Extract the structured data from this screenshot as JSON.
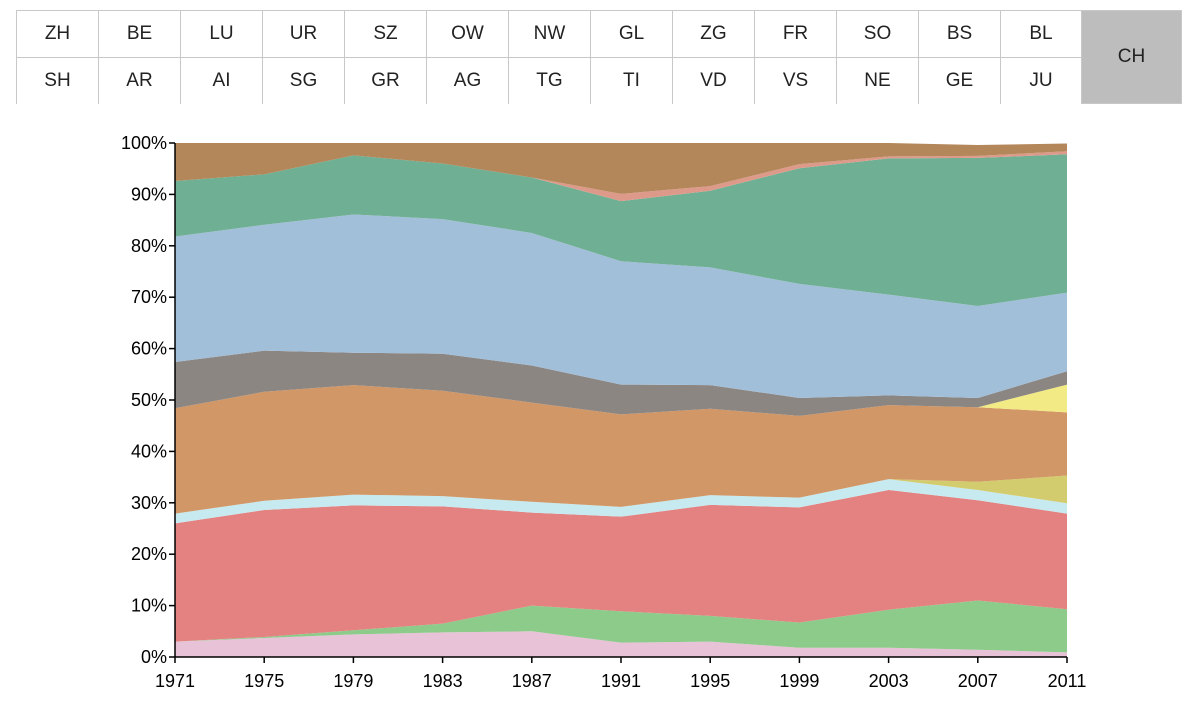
{
  "cantons": {
    "row1": [
      "ZH",
      "BE",
      "LU",
      "UR",
      "SZ",
      "OW",
      "NW",
      "GL",
      "ZG",
      "FR",
      "SO",
      "BS",
      "BL"
    ],
    "row2": [
      "SH",
      "AR",
      "AI",
      "SG",
      "GR",
      "AG",
      "TG",
      "TI",
      "VD",
      "VS",
      "NE",
      "GE",
      "JU"
    ],
    "selected": "CH"
  },
  "chart_data": {
    "type": "area",
    "stacked": true,
    "normalized": true,
    "x": [
      1971,
      1975,
      1979,
      1983,
      1987,
      1991,
      1995,
      1999,
      2003,
      2007,
      2011
    ],
    "xlabel": "",
    "ylabel": "",
    "ylim": [
      0,
      100
    ],
    "yticks": [
      "0%",
      "10%",
      "20%",
      "30%",
      "40%",
      "50%",
      "60%",
      "70%",
      "80%",
      "90%",
      "100%"
    ],
    "xticks": [
      "1971",
      "1975",
      "1979",
      "1983",
      "1987",
      "1991",
      "1995",
      "1999",
      "2003",
      "2007",
      "2011"
    ],
    "grid": false,
    "series": [
      {
        "color": "#e8c2d6",
        "values": [
          3.0,
          3.7,
          4.4,
          4.8,
          5.0,
          2.8,
          3.0,
          1.8,
          1.8,
          1.4,
          0.9
        ]
      },
      {
        "color": "#8ccb8a",
        "values": [
          0.0,
          0.2,
          0.8,
          1.7,
          5.0,
          6.1,
          5.0,
          4.9,
          7.4,
          9.6,
          8.4
        ]
      },
      {
        "color": "#e38281",
        "values": [
          23.0,
          24.7,
          24.3,
          22.8,
          18.1,
          18.4,
          21.6,
          22.4,
          23.3,
          19.5,
          18.6
        ]
      },
      {
        "color": "#c6eaef",
        "values": [
          1.9,
          1.8,
          2.1,
          2.0,
          2.1,
          1.9,
          1.9,
          1.9,
          2.1,
          2.0,
          2.0
        ]
      },
      {
        "color": "#d3cc6e",
        "values": [
          0.0,
          0.0,
          0.0,
          0.0,
          0.0,
          0.0,
          0.0,
          0.0,
          0.0,
          1.6,
          5.4
        ]
      },
      {
        "color": "#d29766",
        "values": [
          20.5,
          21.2,
          21.3,
          20.5,
          19.3,
          18.0,
          16.8,
          15.9,
          14.4,
          14.5,
          12.3
        ]
      },
      {
        "color": "#f2ea84",
        "values": [
          0.0,
          0.0,
          0.0,
          0.0,
          0.0,
          0.0,
          0.0,
          0.0,
          0.0,
          0.0,
          5.4
        ]
      },
      {
        "color": "#8c8683",
        "values": [
          9.0,
          8.0,
          6.3,
          7.2,
          7.2,
          5.8,
          4.6,
          3.5,
          1.9,
          1.8,
          2.6
        ]
      },
      {
        "color": "#a2bfd9",
        "values": [
          24.4,
          24.5,
          26.9,
          26.2,
          25.8,
          24.0,
          22.9,
          22.2,
          19.6,
          17.9,
          15.3
        ]
      },
      {
        "color": "#6faf93",
        "values": [
          10.8,
          9.8,
          11.5,
          10.8,
          10.8,
          11.7,
          14.9,
          22.5,
          26.5,
          28.8,
          26.9
        ]
      },
      {
        "color": "#dd9a8a",
        "values": [
          0.0,
          0.0,
          0.0,
          0.0,
          0.0,
          1.4,
          0.9,
          0.8,
          0.4,
          0.4,
          0.6
        ]
      },
      {
        "color": "#b38759",
        "values": [
          7.4,
          6.1,
          2.4,
          4.0,
          6.7,
          9.9,
          8.4,
          4.1,
          2.6,
          2.1,
          1.5
        ]
      }
    ]
  }
}
